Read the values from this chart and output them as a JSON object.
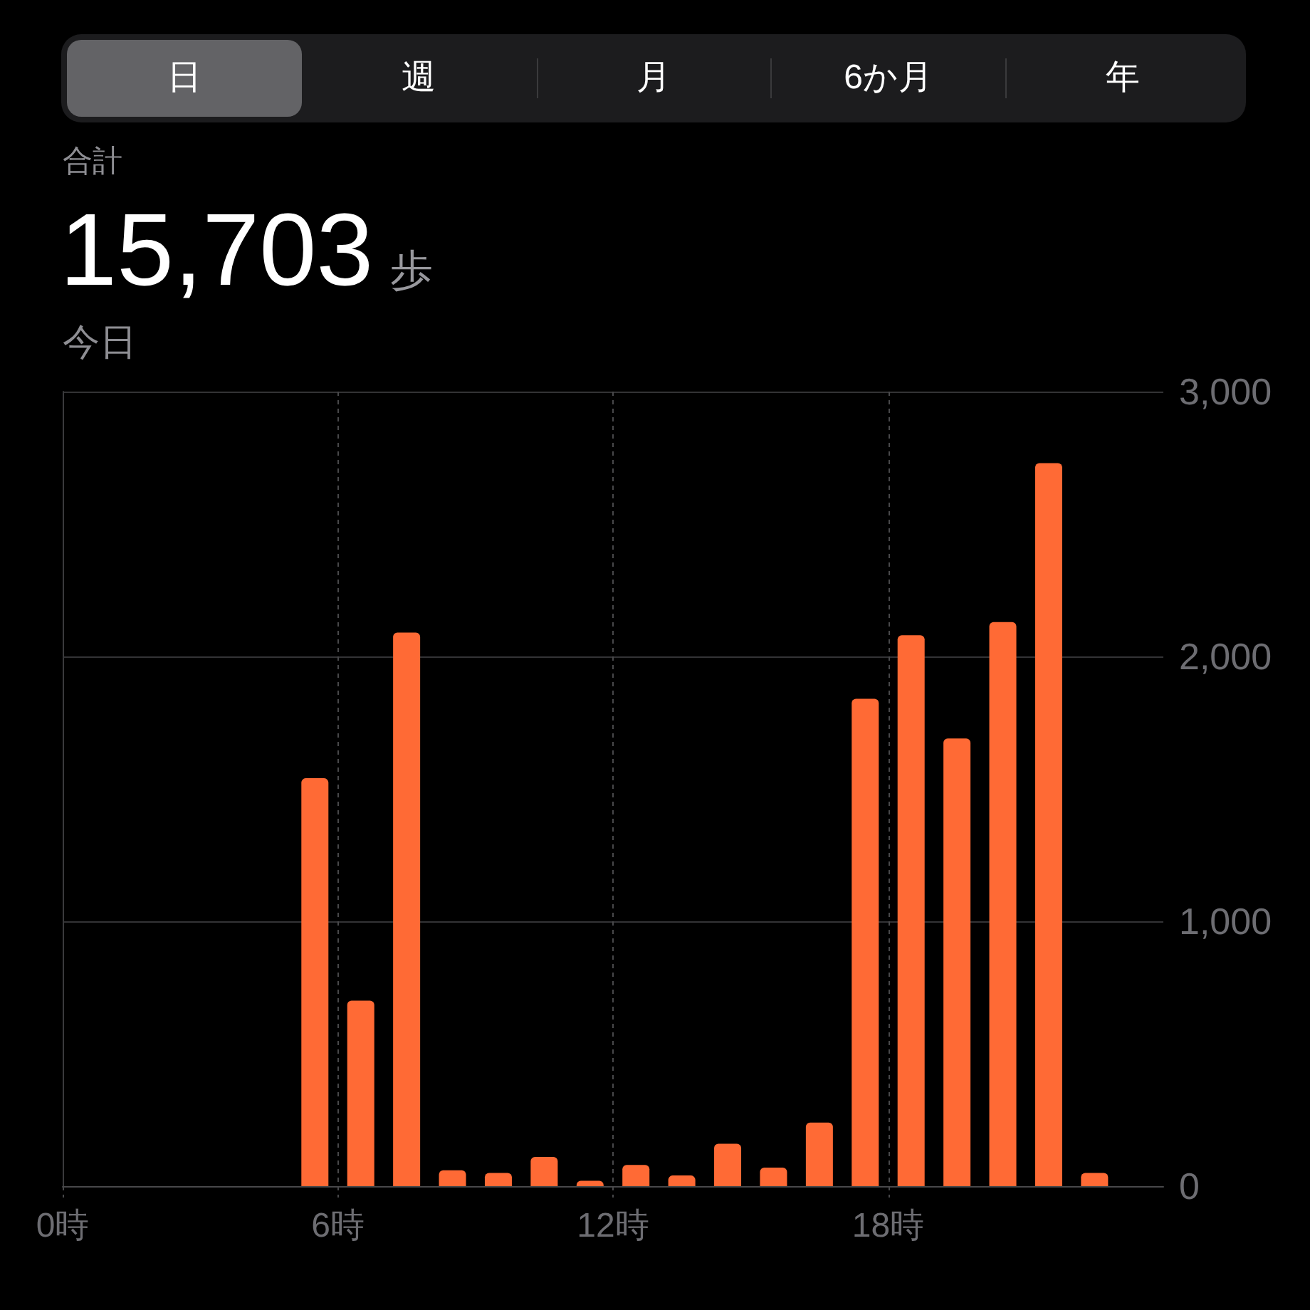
{
  "chart_data": {
    "type": "bar",
    "title": "15,703 歩",
    "subtitle": "今日",
    "annotations": [
      "日",
      "週",
      "月",
      "6か月",
      "年",
      "合計"
    ],
    "x": [
      5.5,
      6.5,
      7.5,
      8.5,
      9.5,
      10.5,
      11.5,
      12.5,
      13.5,
      14.5,
      15.5,
      16.5,
      17.5,
      18.5,
      19.5,
      20.5,
      21.5,
      22.5
    ],
    "values": [
      1540,
      700,
      2090,
      60,
      50,
      110,
      20,
      80,
      40,
      160,
      70,
      240,
      1840,
      2080,
      1690,
      2130,
      2730,
      50
    ],
    "color": "#ff6a35",
    "xlim": [
      0,
      24
    ],
    "xticks": [
      {
        "value": 0,
        "label": "0時"
      },
      {
        "value": 6,
        "label": "6時"
      },
      {
        "value": 12,
        "label": "12時"
      },
      {
        "value": 18,
        "label": "18時"
      }
    ],
    "ylim": [
      0,
      3000
    ],
    "yticks": [
      0,
      {
        "value": 1000,
        "label": "1,000"
      },
      {
        "value": 2000,
        "label": "2,000"
      },
      {
        "value": 3000,
        "label": "3,000"
      }
    ],
    "grid": true
  }
}
